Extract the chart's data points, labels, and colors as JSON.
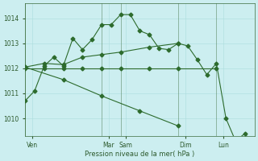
{
  "background_color": "#cceef0",
  "grid_color": "#aadddd",
  "line_color": "#2d6b2d",
  "ylabel": "Pression niveau de la mer( hPa )",
  "ylim": [
    1009.3,
    1014.6
  ],
  "yticks": [
    1010,
    1011,
    1012,
    1013,
    1014
  ],
  "xlim": [
    0,
    96
  ],
  "series1_x": [
    0,
    4,
    8,
    12,
    16,
    20,
    24,
    28,
    32,
    36,
    40,
    44,
    48,
    52,
    56,
    60,
    64,
    68,
    72,
    76,
    80,
    84,
    88,
    92,
    96
  ],
  "series1_y": [
    1010.7,
    1011.1,
    1012.1,
    1012.45,
    1012.1,
    1013.2,
    1012.75,
    1013.15,
    1013.75,
    1013.75,
    1014.15,
    1014.15,
    1013.5,
    1013.35,
    1012.8,
    1012.75,
    1013.0,
    1012.9,
    1012.35,
    1011.75,
    1012.2,
    1010.0,
    1009.1,
    1009.4,
    1008.75
  ],
  "series2_x": [
    0,
    8,
    16,
    24,
    32,
    40,
    52,
    64,
    80
  ],
  "series2_y": [
    1012.0,
    1012.0,
    1012.0,
    1012.0,
    1012.0,
    1012.0,
    1012.0,
    1012.0,
    1012.0
  ],
  "series3_x": [
    0,
    8,
    16,
    24,
    32,
    40,
    52,
    64
  ],
  "series3_y": [
    1012.05,
    1012.2,
    1012.15,
    1012.45,
    1012.55,
    1012.65,
    1012.85,
    1013.0
  ],
  "series4_x": [
    0,
    16,
    32,
    48,
    64
  ],
  "series4_y": [
    1012.05,
    1011.55,
    1010.9,
    1010.3,
    1009.7
  ],
  "vlines_x": [
    0,
    32,
    40,
    64,
    80,
    96
  ],
  "xtick_positions": [
    3,
    35,
    42,
    67,
    83
  ],
  "xtick_labels": [
    "Ven",
    "Mar",
    "Sam",
    "Dim",
    "Lun"
  ],
  "figsize": [
    3.2,
    2.0
  ],
  "dpi": 100
}
